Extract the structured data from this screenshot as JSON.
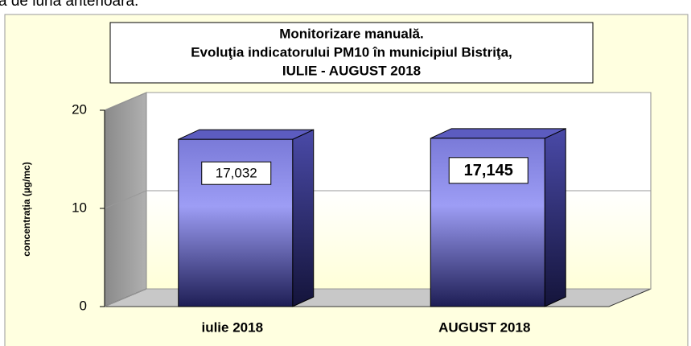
{
  "caption": "a de luna anterioară.",
  "chart_data": {
    "type": "bar3d",
    "title": [
      "Monitorizare manuală.",
      "Evoluţia indicatorului PM10 în municipiul Bistriţa,",
      "IULIE - AUGUST 2018"
    ],
    "y_label": "concentrația (µg/mc)",
    "categories": [
      "iulie 2018",
      "AUGUST 2018"
    ],
    "values": [
      17.032,
      17.145
    ],
    "value_labels": [
      "17,032",
      "17,145"
    ],
    "color": "#8c8cf0",
    "ylim": [
      0,
      20
    ],
    "yticks": [
      0,
      10,
      20
    ],
    "grid": true
  }
}
